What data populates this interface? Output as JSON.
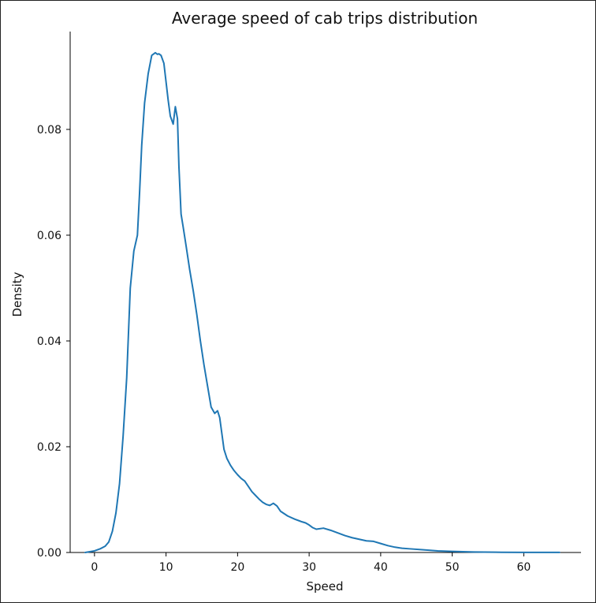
{
  "chart_data": {
    "type": "line",
    "title": "Average speed of cab trips distribution",
    "xlabel": "Speed",
    "ylabel": "Density",
    "xlim": [
      -3.4,
      68
    ],
    "ylim": [
      0,
      0.0985
    ],
    "xticks": [
      "0",
      "10",
      "20",
      "30",
      "40",
      "50",
      "60"
    ],
    "yticks": [
      "0.00",
      "0.02",
      "0.04",
      "0.06",
      "0.08"
    ],
    "grid": false,
    "legend": "none",
    "color": "#1f77b4",
    "series": [
      {
        "x": [
          -1.3,
          0,
          0.8,
          1.5,
          2,
          2.5,
          3,
          3.5,
          4,
          4.5,
          5,
          5.5,
          6,
          6.3,
          6.6,
          7,
          7.5,
          8,
          8.5,
          8.8,
          9,
          9.3,
          9.7,
          10,
          10.3,
          10.6,
          11,
          11.3,
          11.6,
          11.8,
          12.1,
          12.4,
          12.8,
          13.3,
          13.8,
          14.3,
          14.8,
          15.3,
          15.8,
          16.3,
          16.8,
          17.2,
          17.5,
          17.8,
          18.1,
          18.5,
          19,
          19.5,
          20,
          20.5,
          21,
          21.5,
          22,
          22.5,
          23,
          23.5,
          24,
          24.5,
          25,
          25.5,
          26,
          27,
          28,
          29,
          29.5,
          30,
          30.5,
          31,
          32,
          33,
          34,
          35,
          36,
          37,
          38,
          39,
          40,
          41,
          42,
          43,
          44,
          46,
          48,
          50,
          53,
          56,
          60,
          65
        ],
        "y": [
          0,
          0.0003,
          0.0007,
          0.0012,
          0.002,
          0.004,
          0.0075,
          0.013,
          0.022,
          0.033,
          0.05,
          0.057,
          0.06,
          0.068,
          0.077,
          0.085,
          0.0905,
          0.094,
          0.0945,
          0.0942,
          0.0943,
          0.094,
          0.0925,
          0.089,
          0.0855,
          0.0825,
          0.081,
          0.0843,
          0.082,
          0.073,
          0.064,
          0.0615,
          0.058,
          0.0535,
          0.0495,
          0.045,
          0.04,
          0.0355,
          0.0315,
          0.0275,
          0.0263,
          0.0268,
          0.0255,
          0.0225,
          0.0195,
          0.0178,
          0.0165,
          0.0155,
          0.0147,
          0.014,
          0.0135,
          0.0125,
          0.0115,
          0.0108,
          0.0101,
          0.0095,
          0.0091,
          0.0089,
          0.0093,
          0.0088,
          0.0078,
          0.0069,
          0.0063,
          0.0058,
          0.0056,
          0.0052,
          0.0047,
          0.0044,
          0.0046,
          0.0042,
          0.0037,
          0.0032,
          0.0028,
          0.0025,
          0.0022,
          0.0021,
          0.0017,
          0.0013,
          0.001,
          0.0008,
          0.0007,
          0.0005,
          0.0003,
          0.0002,
          0.0001,
          5e-05,
          2e-05,
          1e-05
        ]
      }
    ]
  }
}
